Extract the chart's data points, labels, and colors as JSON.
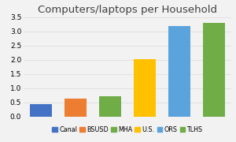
{
  "title": "Computers/laptops per Household",
  "categories": [
    "Canal",
    "BSUSD",
    "MHA",
    "U.S.",
    "ORS",
    "TLHS"
  ],
  "values": [
    0.42,
    0.63,
    0.7,
    2.02,
    3.18,
    3.3
  ],
  "bar_colors": [
    "#4472C4",
    "#ED7D31",
    "#70AD47",
    "#FFC000",
    "#5BA3DC",
    "#70AD47"
  ],
  "ylim": [
    0,
    3.5
  ],
  "yticks": [
    0,
    0.5,
    1.0,
    1.5,
    2.0,
    2.5,
    3.0,
    3.5
  ],
  "background_color": "#F2F2F2",
  "plot_bg_color": "#FFFFFF",
  "title_fontsize": 9.5,
  "tick_fontsize": 6.5,
  "legend_fontsize": 5.8
}
